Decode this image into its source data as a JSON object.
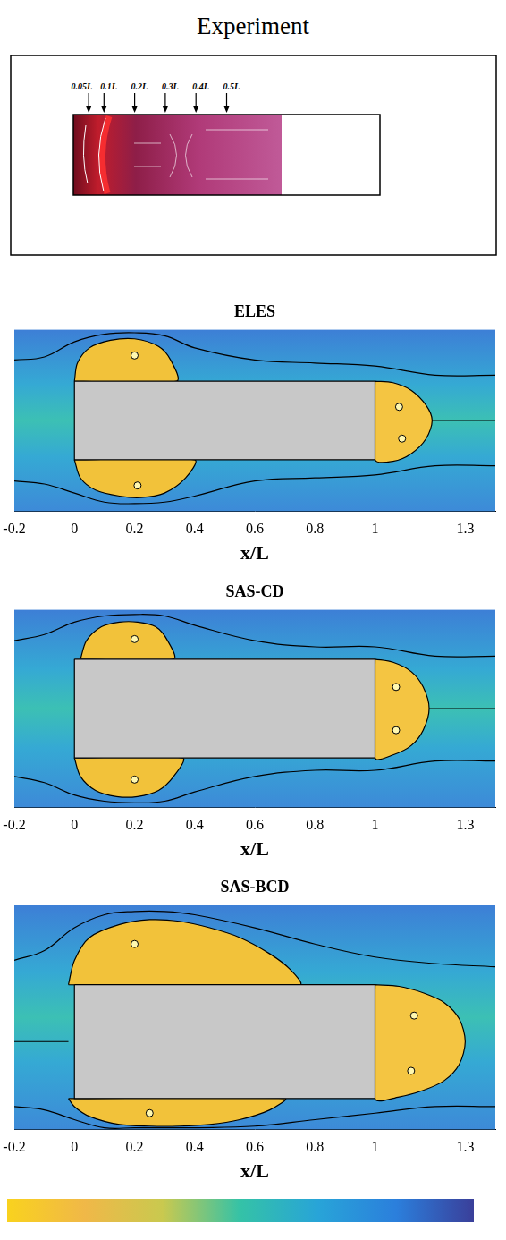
{
  "experiment": {
    "title": "Experiment",
    "stations": [
      {
        "value": 0.05,
        "label": "0.05L"
      },
      {
        "value": 0.1,
        "label": "0.1L"
      },
      {
        "value": 0.2,
        "label": "0.2L"
      },
      {
        "value": 0.3,
        "label": "0.3L"
      },
      {
        "value": 0.4,
        "label": "0.4L"
      },
      {
        "value": 0.5,
        "label": "0.5L"
      }
    ]
  },
  "chart_data": [
    {
      "type": "line",
      "title": "ELES",
      "xlabel": "x/L",
      "grid": false,
      "tick_labels": "x",
      "xlim": [
        -0.2,
        1.4
      ],
      "xticks": [
        -0.2,
        0,
        0.2,
        0.4,
        0.6,
        0.8,
        1,
        1.3
      ],
      "ylim": [
        -0.3,
        0.3
      ],
      "series": [
        {
          "type": "line",
          "color": "#000000",
          "line_style": "solid",
          "x": [
            -0.2,
            -0.1,
            0,
            0.1,
            0.2,
            0.3,
            0.4,
            0.6,
            0.8,
            1,
            1.2,
            1.4
          ],
          "values": [
            0.2,
            0.21,
            0.26,
            0.285,
            0.29,
            0.28,
            0.24,
            0.2,
            0.19,
            0.18,
            0.15,
            0.15
          ]
        },
        {
          "type": "line",
          "color": "#000000",
          "line_style": "solid",
          "x": [
            -0.2,
            -0.1,
            0,
            0.1,
            0.2,
            0.3,
            0.4,
            0.6,
            0.8,
            1,
            1.2,
            1.4
          ],
          "values": [
            -0.2,
            -0.21,
            -0.24,
            -0.27,
            -0.275,
            -0.27,
            -0.25,
            -0.2,
            -0.19,
            -0.18,
            -0.15,
            -0.15
          ]
        },
        {
          "type": "area",
          "color": "#f2c23a",
          "x": [
            0,
            0.01,
            0.05,
            0.12,
            0.2,
            0.28,
            0.32,
            0.34,
            0
          ],
          "values": [
            0.13,
            0.19,
            0.24,
            0.265,
            0.27,
            0.245,
            0.2,
            0.13,
            0.13
          ]
        },
        {
          "type": "area",
          "color": "#f2c23a",
          "x": [
            0,
            0.02,
            0.07,
            0.15,
            0.22,
            0.3,
            0.37,
            0.4,
            0
          ],
          "values": [
            -0.13,
            -0.19,
            -0.23,
            -0.25,
            -0.255,
            -0.24,
            -0.19,
            -0.13,
            -0.13
          ]
        },
        {
          "type": "area",
          "color": "#f4c542",
          "x": [
            1,
            1.06,
            1.12,
            1.17,
            1.19,
            1.17,
            1.12,
            1.06,
            1,
            1
          ],
          "values": [
            0.13,
            0.125,
            0.1,
            0.05,
            0,
            -0.06,
            -0.11,
            -0.135,
            -0.13,
            0.13
          ]
        },
        {
          "type": "line",
          "color": "#000000",
          "line_style": "solid",
          "x": [
            1.19,
            1.4
          ],
          "values": [
            0,
            0
          ]
        },
        {
          "type": "area",
          "color": "#c8c8c8",
          "x": [
            0,
            1,
            1,
            0,
            0
          ],
          "values": [
            0.13,
            0.13,
            -0.13,
            -0.13,
            0.13
          ]
        },
        {
          "type": "scatter",
          "color": "#fff8b0",
          "marker": "circle",
          "x": [
            0.2,
            0.21,
            1.08,
            1.09
          ],
          "values": [
            0.215,
            -0.215,
            0.045,
            -0.06
          ]
        }
      ]
    },
    {
      "type": "line",
      "title": "SAS-CD",
      "xlabel": "x/L",
      "grid": false,
      "tick_labels": "x",
      "xlim": [
        -0.2,
        1.4
      ],
      "xticks": [
        -0.2,
        0,
        0.2,
        0.4,
        0.6,
        0.8,
        1,
        1.3
      ],
      "ylim": [
        -0.32,
        0.32
      ],
      "series": [
        {
          "type": "line",
          "color": "#000000",
          "line_style": "solid",
          "x": [
            -0.2,
            -0.1,
            0,
            0.1,
            0.2,
            0.3,
            0.4,
            0.6,
            0.8,
            1,
            1.2,
            1.4
          ],
          "values": [
            0.22,
            0.24,
            0.28,
            0.3,
            0.305,
            0.3,
            0.27,
            0.22,
            0.2,
            0.2,
            0.17,
            0.17
          ]
        },
        {
          "type": "line",
          "color": "#000000",
          "line_style": "solid",
          "x": [
            -0.2,
            -0.1,
            0,
            0.1,
            0.2,
            0.3,
            0.4,
            0.6,
            0.8,
            1,
            1.2,
            1.4
          ],
          "values": [
            -0.22,
            -0.24,
            -0.28,
            -0.3,
            -0.305,
            -0.3,
            -0.27,
            -0.22,
            -0.2,
            -0.2,
            -0.17,
            -0.17
          ]
        },
        {
          "type": "area",
          "color": "#f2c23a",
          "x": [
            0.02,
            0.04,
            0.09,
            0.15,
            0.21,
            0.27,
            0.31,
            0.33,
            0.02
          ],
          "values": [
            0.16,
            0.22,
            0.265,
            0.28,
            0.28,
            0.265,
            0.22,
            0.16,
            0.16
          ]
        },
        {
          "type": "area",
          "color": "#f2c23a",
          "x": [
            0,
            0.02,
            0.07,
            0.14,
            0.21,
            0.28,
            0.33,
            0.36,
            0
          ],
          "values": [
            -0.16,
            -0.22,
            -0.265,
            -0.285,
            -0.285,
            -0.265,
            -0.22,
            -0.16,
            -0.16
          ]
        },
        {
          "type": "area",
          "color": "#f4c542",
          "x": [
            1,
            1.06,
            1.12,
            1.16,
            1.18,
            1.16,
            1.12,
            1.06,
            1,
            1
          ],
          "values": [
            0.16,
            0.15,
            0.12,
            0.07,
            0,
            -0.07,
            -0.12,
            -0.15,
            -0.16,
            0.16
          ]
        },
        {
          "type": "line",
          "color": "#000000",
          "line_style": "solid",
          "x": [
            1.18,
            1.4
          ],
          "values": [
            0,
            0
          ]
        },
        {
          "type": "area",
          "color": "#c8c8c8",
          "x": [
            0,
            1,
            1,
            0,
            0
          ],
          "values": [
            0.16,
            0.16,
            -0.16,
            -0.16,
            0.16
          ]
        },
        {
          "type": "scatter",
          "color": "#fff8b0",
          "marker": "circle",
          "x": [
            0.2,
            0.2,
            1.07,
            1.07
          ],
          "values": [
            0.225,
            -0.23,
            0.07,
            -0.07
          ]
        }
      ]
    },
    {
      "type": "line",
      "title": "SAS-BCD",
      "xlabel": "x/L",
      "grid": false,
      "tick_labels": "x",
      "xlim": [
        -0.2,
        1.4
      ],
      "xticks": [
        -0.2,
        0,
        0.2,
        0.4,
        0.6,
        0.8,
        1,
        1.3
      ],
      "ylim": [
        -0.27,
        0.42
      ],
      "series": [
        {
          "type": "line",
          "color": "#000000",
          "line_style": "solid",
          "x": [
            -0.2,
            -0.1,
            0,
            0.1,
            0.2,
            0.3,
            0.4,
            0.6,
            0.8,
            1,
            1.2,
            1.4
          ],
          "values": [
            0.25,
            0.28,
            0.35,
            0.39,
            0.4,
            0.4,
            0.39,
            0.35,
            0.3,
            0.26,
            0.24,
            0.23
          ]
        },
        {
          "type": "line",
          "color": "#000000",
          "line_style": "solid",
          "x": [
            -0.2,
            -0.1,
            0,
            0.1,
            0.2,
            0.3,
            0.4,
            0.6,
            0.8,
            1,
            1.2,
            1.4
          ],
          "values": [
            -0.2,
            -0.21,
            -0.24,
            -0.265,
            -0.265,
            -0.265,
            -0.265,
            -0.26,
            -0.24,
            -0.22,
            -0.2,
            -0.2
          ]
        },
        {
          "type": "area",
          "color": "#f2c23a",
          "x": [
            -0.02,
            0,
            0.05,
            0.15,
            0.25,
            0.35,
            0.45,
            0.55,
            0.65,
            0.72,
            0.75,
            -0.02
          ],
          "values": [
            0.175,
            0.25,
            0.32,
            0.36,
            0.375,
            0.37,
            0.35,
            0.32,
            0.27,
            0.22,
            0.175,
            0.175
          ]
        },
        {
          "type": "area",
          "color": "#f2c23a",
          "x": [
            -0.02,
            0,
            0.05,
            0.15,
            0.25,
            0.35,
            0.45,
            0.55,
            0.65,
            0.7,
            -0.02
          ],
          "values": [
            -0.175,
            -0.2,
            -0.23,
            -0.255,
            -0.26,
            -0.26,
            -0.255,
            -0.24,
            -0.21,
            -0.175,
            -0.175
          ]
        },
        {
          "type": "area",
          "color": "#f4c542",
          "x": [
            1,
            1.08,
            1.16,
            1.23,
            1.28,
            1.3,
            1.28,
            1.23,
            1.16,
            1.08,
            1,
            1
          ],
          "values": [
            0.175,
            0.17,
            0.15,
            0.12,
            0.07,
            0,
            -0.07,
            -0.12,
            -0.15,
            -0.17,
            -0.175,
            0.175
          ]
        },
        {
          "type": "line",
          "color": "#000000",
          "line_style": "solid",
          "x": [
            -0.2,
            -0.02
          ],
          "values": [
            0,
            0
          ]
        },
        {
          "type": "area",
          "color": "#c8c8c8",
          "x": [
            0,
            1,
            1,
            0,
            0
          ],
          "values": [
            0.175,
            0.175,
            -0.175,
            -0.175,
            0.175
          ]
        },
        {
          "type": "scatter",
          "color": "#fff8b0",
          "marker": "circle",
          "x": [
            0.2,
            0.25,
            1.13,
            1.12
          ],
          "values": [
            0.3,
            -0.22,
            0.08,
            -0.09
          ]
        }
      ]
    }
  ],
  "colorbar": {
    "colors": [
      "#f9d21e",
      "#f0b848",
      "#c9c94f",
      "#34c2a7",
      "#28a4d8",
      "#2b7fdc",
      "#3a3f9a"
    ]
  }
}
